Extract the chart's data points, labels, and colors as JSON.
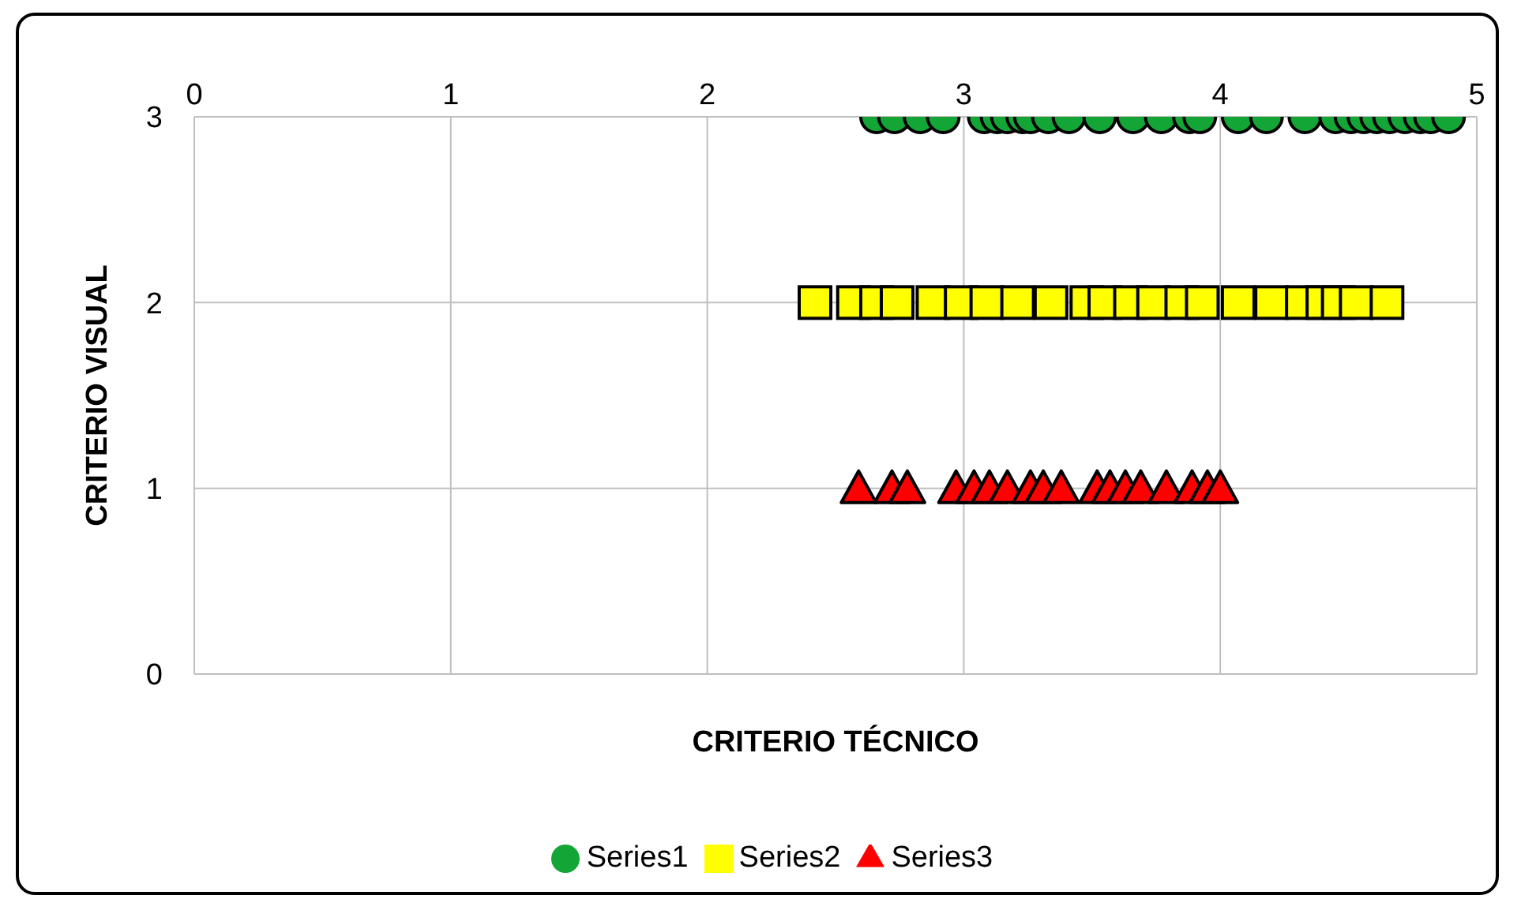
{
  "chart_data": {
    "type": "scatter",
    "xlabel": "CRITERIO TÉCNICO",
    "ylabel": "CRITERIO VISUAL",
    "xlim": [
      0,
      5
    ],
    "xticks": [
      0,
      1,
      2,
      3,
      4,
      5
    ],
    "ylim": [
      0,
      3
    ],
    "yticks": [
      0,
      1,
      2,
      3
    ],
    "grid": true,
    "legend": "bottom",
    "series": [
      {
        "name": "Series1",
        "color": "#13a536",
        "marker": "circle",
        "x": [
          2.66,
          2.73,
          2.83,
          2.92,
          3.08,
          3.13,
          3.17,
          3.23,
          3.26,
          3.33,
          3.41,
          3.53,
          3.66,
          3.77,
          3.88,
          3.92,
          4.07,
          4.18,
          4.33,
          4.45,
          4.51,
          4.56,
          4.61,
          4.66,
          4.72,
          4.78,
          4.82,
          4.89
        ],
        "values": [
          3,
          3,
          3,
          3,
          3,
          3,
          3,
          3,
          3,
          3,
          3,
          3,
          3,
          3,
          3,
          3,
          3,
          3,
          3,
          3,
          3,
          3,
          3,
          3,
          3,
          3,
          3,
          3
        ]
      },
      {
        "name": "Series2",
        "color": "#ffff00",
        "marker": "square",
        "x": [
          2.42,
          2.57,
          2.66,
          2.74,
          2.88,
          2.99,
          3.09,
          3.21,
          3.34,
          3.48,
          3.55,
          3.65,
          3.74,
          3.85,
          3.93,
          4.07,
          4.2,
          4.32,
          4.4,
          4.46,
          4.53,
          4.65
        ],
        "values": [
          2,
          2,
          2,
          2,
          2,
          2,
          2,
          2,
          2,
          2,
          2,
          2,
          2,
          2,
          2,
          2,
          2,
          2,
          2,
          2,
          2,
          2
        ]
      },
      {
        "name": "Series3",
        "color": "#ff0000",
        "marker": "triangle",
        "x": [
          2.59,
          2.72,
          2.78,
          2.97,
          3.04,
          3.1,
          3.17,
          3.26,
          3.31,
          3.38,
          3.52,
          3.57,
          3.63,
          3.69,
          3.79,
          3.89,
          3.95,
          4.0
        ],
        "values": [
          1,
          1,
          1,
          1,
          1,
          1,
          1,
          1,
          1,
          1,
          1,
          1,
          1,
          1,
          1,
          1,
          1,
          1
        ]
      }
    ]
  }
}
